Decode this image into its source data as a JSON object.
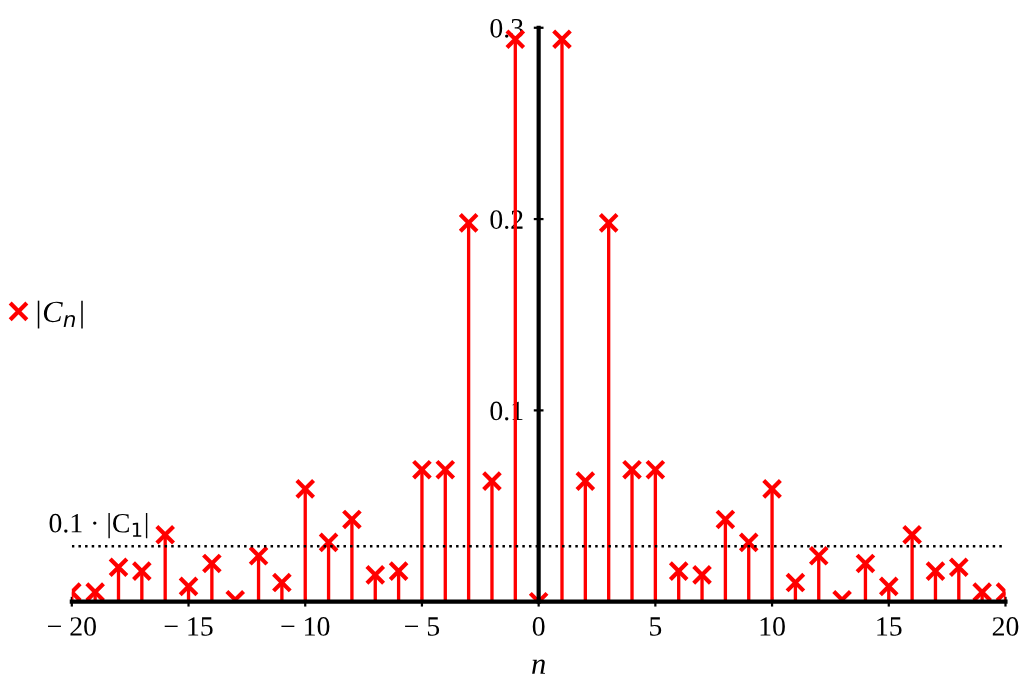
{
  "chart_data": {
    "type": "lollipop",
    "xlabel": "n",
    "x": [
      -20,
      -19,
      -18,
      -17,
      -16,
      -15,
      -14,
      -13,
      -12,
      -11,
      -10,
      -9,
      -8,
      -7,
      -6,
      -5,
      -4,
      -3,
      -2,
      -1,
      0,
      1,
      2,
      3,
      4,
      5,
      6,
      7,
      8,
      9,
      10,
      11,
      12,
      13,
      14,
      15,
      16,
      17,
      18,
      19,
      20
    ],
    "series": [
      {
        "name": "|C$_{n}$|",
        "color": "#ff0000",
        "values": [
          0.005,
          0.005,
          0.018,
          0.016,
          0.035,
          0.008,
          0.02,
          0.001,
          0.024,
          0.01,
          0.059,
          0.031,
          0.043,
          0.014,
          0.016,
          0.069,
          0.069,
          0.198,
          0.063,
          0.294,
          0,
          0.294,
          0.063,
          0.198,
          0.069,
          0.069,
          0.016,
          0.014,
          0.043,
          0.031,
          0.059,
          0.01,
          0.024,
          0.001,
          0.02,
          0.008,
          0.035,
          0.016,
          0.018,
          0.005,
          0.005
        ]
      }
    ],
    "marker": "cross",
    "legend": "left",
    "grid": false,
    "xlim": [
      -20,
      20
    ],
    "xticks": [
      {
        "value": -20,
        "label": "− 20"
      },
      {
        "value": -15,
        "label": "− 15"
      },
      {
        "value": -10,
        "label": "− 10"
      },
      {
        "value": -5,
        "label": "− 5"
      },
      0,
      5,
      10,
      15,
      20
    ],
    "ylim": [
      0,
      0.3
    ],
    "yticks": [
      0.1,
      0.2,
      0.3
    ],
    "ref_lines": [
      {
        "axis": "y",
        "value": 0.029,
        "label": "0.1 · |C$_{1}$|",
        "color": "#000000",
        "line_style": "dotted"
      }
    ]
  }
}
